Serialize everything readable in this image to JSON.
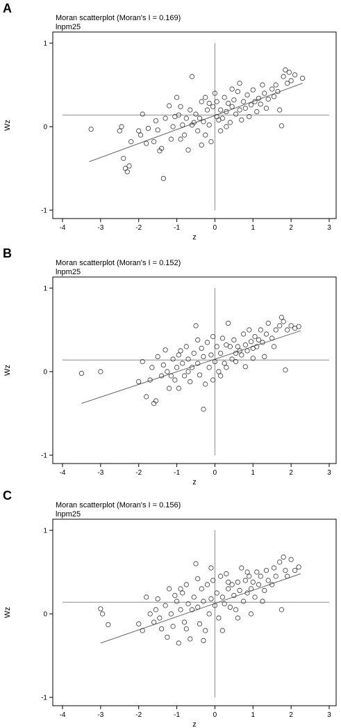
{
  "chart_data": [
    {
      "panel": "A",
      "type": "scatter",
      "title": "Moran scatterplot (Moran's I = 0.169)",
      "subtitle": "lnpm25",
      "xlabel": "z",
      "ylabel": "Wz",
      "xlim": [
        -4,
        3
      ],
      "ylim": [
        -1,
        1
      ],
      "xticks": [
        "-4",
        "-3",
        "-2",
        "-1",
        "0",
        "1",
        "2",
        "3"
      ],
      "yticks": [
        "-1",
        "0",
        "1"
      ],
      "mean_wz": 0.14,
      "fit_line": [
        [
          -3.3,
          -0.42
        ],
        [
          2.3,
          0.52
        ]
      ],
      "points": [
        [
          -3.25,
          -0.03
        ],
        [
          -2.5,
          -0.05
        ],
        [
          -2.45,
          0.0
        ],
        [
          -2.4,
          -0.38
        ],
        [
          -2.35,
          -0.5
        ],
        [
          -2.3,
          -0.54
        ],
        [
          -2.25,
          -0.47
        ],
        [
          -2.2,
          -0.18
        ],
        [
          -2.0,
          -0.05
        ],
        [
          -1.95,
          -0.1
        ],
        [
          -1.9,
          0.15
        ],
        [
          -1.8,
          -0.2
        ],
        [
          -1.75,
          -0.02
        ],
        [
          -1.6,
          -0.18
        ],
        [
          -1.55,
          0.07
        ],
        [
          -1.5,
          -0.04
        ],
        [
          -1.45,
          -0.29
        ],
        [
          -1.4,
          -0.26
        ],
        [
          -1.35,
          -0.62
        ],
        [
          -1.3,
          0.1
        ],
        [
          -1.2,
          0.25
        ],
        [
          -1.15,
          -0.15
        ],
        [
          -1.1,
          0.0
        ],
        [
          -1.0,
          0.35
        ],
        [
          -0.95,
          0.14
        ],
        [
          -0.9,
          0.24
        ],
        [
          -0.85,
          0.02
        ],
        [
          -0.8,
          -0.1
        ],
        [
          -0.75,
          0.1
        ],
        [
          -0.7,
          -0.28
        ],
        [
          -0.65,
          0.2
        ],
        [
          -0.6,
          0.6
        ],
        [
          -0.55,
          0.05
        ],
        [
          -0.5,
          0.15
        ],
        [
          -0.45,
          -0.05
        ],
        [
          -0.4,
          0.1
        ],
        [
          -0.35,
          0.3
        ],
        [
          -0.3,
          0.06
        ],
        [
          -0.25,
          -0.1
        ],
        [
          -0.2,
          0.2
        ],
        [
          -0.15,
          0.02
        ],
        [
          -0.1,
          -0.18
        ],
        [
          -0.05,
          0.24
        ],
        [
          0.0,
          0.4
        ],
        [
          0.05,
          0.3
        ],
        [
          0.1,
          0.08
        ],
        [
          0.15,
          0.2
        ],
        [
          0.2,
          0.1
        ],
        [
          0.25,
          0.35
        ],
        [
          0.3,
          0.18
        ],
        [
          0.35,
          0.28
        ],
        [
          0.4,
          0.05
        ],
        [
          0.45,
          0.24
        ],
        [
          0.5,
          0.32
        ],
        [
          0.55,
          0.15
        ],
        [
          0.6,
          0.42
        ],
        [
          0.65,
          0.2
        ],
        [
          0.7,
          0.08
        ],
        [
          0.75,
          0.3
        ],
        [
          0.8,
          0.22
        ],
        [
          0.85,
          0.38
        ],
        [
          0.9,
          0.12
        ],
        [
          0.95,
          0.26
        ],
        [
          1.0,
          0.44
        ],
        [
          1.05,
          0.3
        ],
        [
          1.1,
          0.18
        ],
        [
          1.15,
          0.34
        ],
        [
          1.2,
          0.27
        ],
        [
          1.3,
          0.4
        ],
        [
          1.35,
          0.22
        ],
        [
          1.4,
          0.33
        ],
        [
          1.5,
          0.45
        ],
        [
          1.55,
          0.36
        ],
        [
          1.6,
          0.5
        ],
        [
          1.65,
          0.42
        ],
        [
          1.7,
          0.2
        ],
        [
          1.75,
          0.01
        ],
        [
          1.8,
          0.6
        ],
        [
          1.85,
          0.68
        ],
        [
          1.9,
          0.52
        ],
        [
          1.95,
          0.65
        ],
        [
          2.0,
          0.55
        ],
        [
          2.1,
          0.62
        ],
        [
          2.3,
          0.58
        ],
        [
          -0.9,
          -0.15
        ],
        [
          -0.35,
          -0.22
        ],
        [
          0.15,
          -0.05
        ],
        [
          -1.05,
          0.12
        ],
        [
          -0.15,
          0.28
        ],
        [
          0.3,
          0.0
        ],
        [
          0.65,
          0.52
        ],
        [
          1.25,
          0.5
        ],
        [
          -0.6,
          0.02
        ],
        [
          0.05,
          0.12
        ],
        [
          0.45,
          0.45
        ],
        [
          -0.25,
          0.35
        ]
      ]
    },
    {
      "panel": "B",
      "type": "scatter",
      "title": "Moran scatterplot (Moran's I = 0.152)",
      "subtitle": "lnpm25",
      "xlabel": "z",
      "ylabel": "Wz",
      "xlim": [
        -4,
        3
      ],
      "ylim": [
        -1,
        1
      ],
      "xticks": [
        "-4",
        "-3",
        "-2",
        "-1",
        "0",
        "1",
        "2",
        "3"
      ],
      "yticks": [
        "-1",
        "0",
        "1"
      ],
      "mean_wz": 0.14,
      "fit_line": [
        [
          -3.5,
          -0.38
        ],
        [
          2.25,
          0.49
        ]
      ],
      "points": [
        [
          -3.5,
          -0.02
        ],
        [
          -3.0,
          0.0
        ],
        [
          -2.0,
          -0.12
        ],
        [
          -1.9,
          0.12
        ],
        [
          -1.8,
          -0.3
        ],
        [
          -1.7,
          -0.1
        ],
        [
          -1.65,
          0.05
        ],
        [
          -1.6,
          -0.38
        ],
        [
          -1.55,
          -0.35
        ],
        [
          -1.4,
          -0.05
        ],
        [
          -1.35,
          0.08
        ],
        [
          -1.3,
          0.26
        ],
        [
          -1.25,
          0.0
        ],
        [
          -1.2,
          -0.2
        ],
        [
          -1.1,
          0.15
        ],
        [
          -1.05,
          -0.1
        ],
        [
          -1.0,
          0.05
        ],
        [
          -0.95,
          -0.2
        ],
        [
          -0.9,
          0.25
        ],
        [
          -0.85,
          0.1
        ],
        [
          -0.8,
          -0.05
        ],
        [
          -0.75,
          0.3
        ],
        [
          -0.7,
          0.15
        ],
        [
          -0.65,
          -0.12
        ],
        [
          -0.6,
          0.05
        ],
        [
          -0.55,
          0.22
        ],
        [
          -0.5,
          0.55
        ],
        [
          -0.45,
          0.1
        ],
        [
          -0.4,
          -0.04
        ],
        [
          -0.35,
          0.28
        ],
        [
          -0.3,
          0.18
        ],
        [
          -0.25,
          -0.15
        ],
        [
          -0.2,
          0.35
        ],
        [
          -0.15,
          0.05
        ],
        [
          -0.1,
          0.2
        ],
        [
          -0.05,
          -0.1
        ],
        [
          0.0,
          0.12
        ],
        [
          0.05,
          0.3
        ],
        [
          0.1,
          0.0
        ],
        [
          0.15,
          0.22
        ],
        [
          0.2,
          0.4
        ],
        [
          0.25,
          0.1
        ],
        [
          0.3,
          0.05
        ],
        [
          0.35,
          0.58
        ],
        [
          0.4,
          0.3
        ],
        [
          0.45,
          0.15
        ],
        [
          0.5,
          0.38
        ],
        [
          0.55,
          0.22
        ],
        [
          0.6,
          0.3
        ],
        [
          0.65,
          0.25
        ],
        [
          0.7,
          0.2
        ],
        [
          0.75,
          0.45
        ],
        [
          0.8,
          0.32
        ],
        [
          0.85,
          0.25
        ],
        [
          0.9,
          0.5
        ],
        [
          0.95,
          0.36
        ],
        [
          1.0,
          0.28
        ],
        [
          1.05,
          0.42
        ],
        [
          1.1,
          0.3
        ],
        [
          1.15,
          0.38
        ],
        [
          1.2,
          0.5
        ],
        [
          1.3,
          0.18
        ],
        [
          1.35,
          0.45
        ],
        [
          1.4,
          0.58
        ],
        [
          1.5,
          0.4
        ],
        [
          1.55,
          0.3
        ],
        [
          1.6,
          0.5
        ],
        [
          1.7,
          0.55
        ],
        [
          1.75,
          0.65
        ],
        [
          1.8,
          0.6
        ],
        [
          1.85,
          0.02
        ],
        [
          1.9,
          0.5
        ],
        [
          2.0,
          0.55
        ],
        [
          2.1,
          0.52
        ],
        [
          2.2,
          0.54
        ],
        [
          -0.95,
          0.2
        ],
        [
          -0.3,
          -0.45
        ],
        [
          0.15,
          -0.05
        ],
        [
          -1.15,
          -0.05
        ],
        [
          0.55,
          0.12
        ],
        [
          -0.7,
          0.0
        ],
        [
          0.3,
          0.32
        ],
        [
          1.25,
          0.35
        ],
        [
          -0.45,
          0.38
        ],
        [
          0.8,
          0.06
        ],
        [
          -1.5,
          0.18
        ],
        [
          1.0,
          0.16
        ],
        [
          -0.05,
          0.42
        ]
      ]
    },
    {
      "panel": "C",
      "type": "scatter",
      "title": "Moran scatterplot (Moran's I = 0.156)",
      "subtitle": "lnpm25",
      "xlabel": "z",
      "ylabel": "Wz",
      "xlim": [
        -4,
        3
      ],
      "ylim": [
        -1,
        1
      ],
      "xticks": [
        "-4",
        "-3",
        "-2",
        "-1",
        "0",
        "1",
        "2",
        "3"
      ],
      "yticks": [
        "-1",
        "0",
        "1"
      ],
      "mean_wz": 0.14,
      "fit_line": [
        [
          -3.0,
          -0.35
        ],
        [
          2.25,
          0.48
        ]
      ],
      "points": [
        [
          -3.0,
          0.06
        ],
        [
          -2.95,
          0.0
        ],
        [
          -2.8,
          -0.13
        ],
        [
          -2.0,
          -0.12
        ],
        [
          -1.9,
          -0.2
        ],
        [
          -1.8,
          0.2
        ],
        [
          -1.7,
          0.0
        ],
        [
          -1.6,
          -0.1
        ],
        [
          -1.5,
          0.18
        ],
        [
          -1.45,
          -0.05
        ],
        [
          -1.4,
          -0.18
        ],
        [
          -1.3,
          0.1
        ],
        [
          -1.25,
          -0.28
        ],
        [
          -1.2,
          0.3
        ],
        [
          -1.15,
          0.0
        ],
        [
          -1.1,
          -0.15
        ],
        [
          -1.0,
          0.15
        ],
        [
          -0.95,
          -0.35
        ],
        [
          -0.9,
          0.05
        ],
        [
          -0.85,
          0.25
        ],
        [
          -0.8,
          -0.1
        ],
        [
          -0.75,
          0.35
        ],
        [
          -0.7,
          0.12
        ],
        [
          -0.65,
          -0.3
        ],
        [
          -0.6,
          0.05
        ],
        [
          -0.55,
          0.2
        ],
        [
          -0.5,
          0.6
        ],
        [
          -0.45,
          0.08
        ],
        [
          -0.4,
          -0.12
        ],
        [
          -0.35,
          0.3
        ],
        [
          -0.3,
          0.15
        ],
        [
          -0.25,
          -0.2
        ],
        [
          -0.2,
          0.35
        ],
        [
          -0.15,
          0.0
        ],
        [
          -0.1,
          0.18
        ],
        [
          -0.05,
          0.4
        ],
        [
          0.0,
          0.1
        ],
        [
          0.05,
          0.25
        ],
        [
          0.1,
          -0.05
        ],
        [
          0.15,
          0.45
        ],
        [
          0.2,
          0.2
        ],
        [
          0.25,
          0.12
        ],
        [
          0.3,
          0.48
        ],
        [
          0.35,
          0.3
        ],
        [
          0.4,
          0.08
        ],
        [
          0.45,
          0.35
        ],
        [
          0.5,
          0.22
        ],
        [
          0.55,
          0.05
        ],
        [
          0.6,
          0.38
        ],
        [
          0.65,
          0.28
        ],
        [
          0.7,
          0.55
        ],
        [
          0.75,
          0.15
        ],
        [
          0.8,
          0.4
        ],
        [
          0.85,
          0.25
        ],
        [
          0.9,
          0.45
        ],
        [
          0.95,
          0.3
        ],
        [
          1.0,
          0.38
        ],
        [
          1.05,
          0.2
        ],
        [
          1.1,
          0.5
        ],
        [
          1.15,
          0.35
        ],
        [
          1.2,
          0.45
        ],
        [
          1.3,
          0.28
        ],
        [
          1.35,
          0.52
        ],
        [
          1.4,
          0.4
        ],
        [
          1.5,
          0.35
        ],
        [
          1.55,
          0.55
        ],
        [
          1.6,
          0.45
        ],
        [
          1.7,
          0.62
        ],
        [
          1.75,
          0.05
        ],
        [
          1.8,
          0.68
        ],
        [
          1.85,
          0.52
        ],
        [
          1.9,
          0.45
        ],
        [
          2.0,
          0.65
        ],
        [
          2.1,
          0.52
        ],
        [
          2.2,
          0.56
        ],
        [
          -0.9,
          0.3
        ],
        [
          -0.3,
          -0.32
        ],
        [
          0.2,
          -0.2
        ],
        [
          -1.05,
          0.22
        ],
        [
          0.6,
          -0.05
        ],
        [
          -0.75,
          -0.18
        ],
        [
          0.35,
          0.38
        ],
        [
          1.25,
          0.15
        ],
        [
          -0.45,
          0.42
        ],
        [
          0.85,
          0.5
        ],
        [
          -1.55,
          0.05
        ],
        [
          0.95,
          0.0
        ],
        [
          -0.1,
          0.55
        ]
      ]
    }
  ]
}
